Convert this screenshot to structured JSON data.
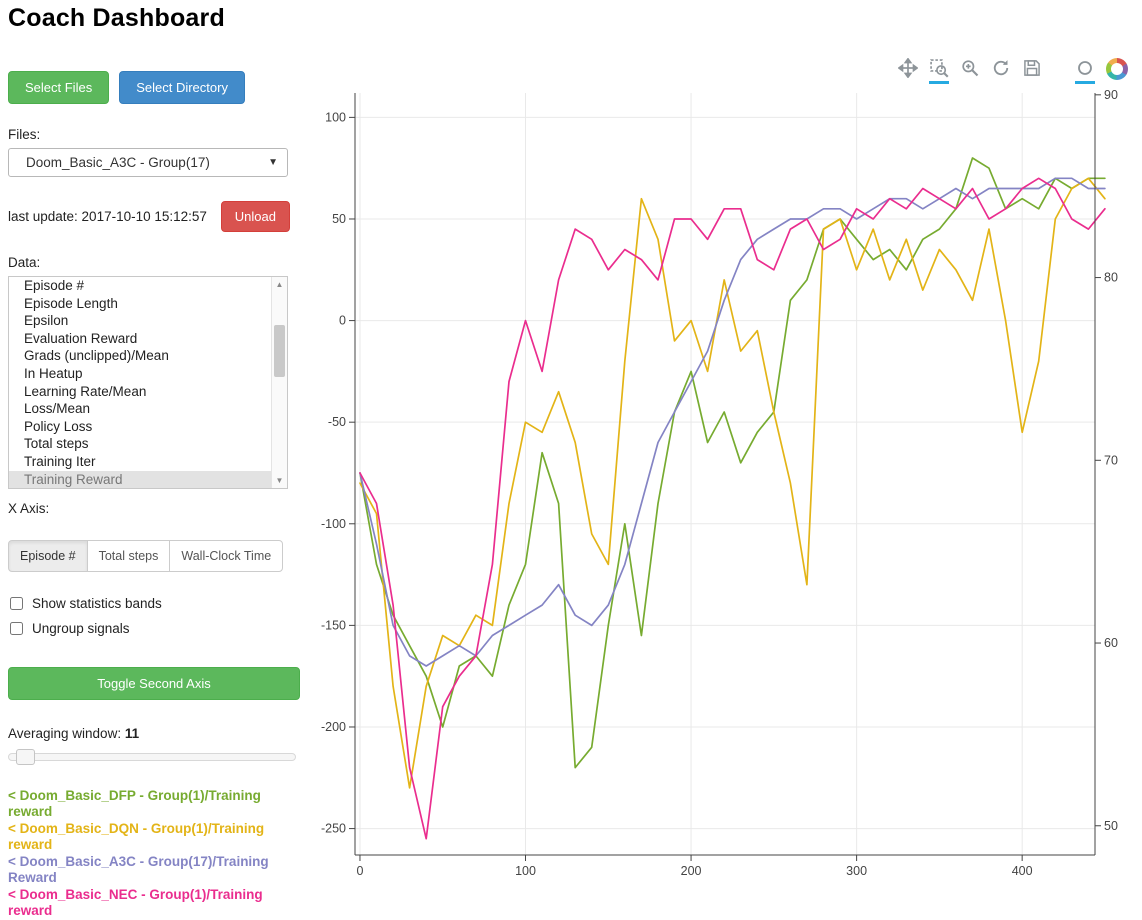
{
  "title": "Coach Dashboard",
  "buttons": {
    "select_files": "Select Files",
    "select_directory": "Select Directory",
    "unload": "Unload",
    "toggle_second_axis": "Toggle Second Axis"
  },
  "files": {
    "label": "Files:",
    "selected": "Doom_Basic_A3C - Group(17)"
  },
  "last_update": "last update: 2017-10-10 15:12:57",
  "data_list": {
    "label": "Data:",
    "items": [
      "Episode #",
      "Episode Length",
      "Epsilon",
      "Evaluation Reward",
      "Grads (unclipped)/Mean",
      "In Heatup",
      "Learning Rate/Mean",
      "Loss/Mean",
      "Policy Loss",
      "Total steps",
      "Training Iter",
      "Training Reward"
    ],
    "selected": "Training Reward"
  },
  "x_axis": {
    "label": "X Axis:",
    "options": [
      "Episode #",
      "Total steps",
      "Wall-Clock Time"
    ],
    "selected": "Episode #"
  },
  "checkboxes": [
    {
      "label": "Show statistics bands",
      "checked": false
    },
    {
      "label": "Ungroup signals",
      "checked": false
    }
  ],
  "averaging": {
    "label": "Averaging window:",
    "value": "11"
  },
  "legend": [
    {
      "text": "< Doom_Basic_DFP - Group(1)/Training reward",
      "color": "#77ab30"
    },
    {
      "text": "< Doom_Basic_DQN - Group(1)/Training reward",
      "color": "#e3b417"
    },
    {
      "text": "< Doom_Basic_A3C - Group(17)/Training Reward",
      "color": "#8484c4"
    },
    {
      "text": "< Doom_Basic_NEC - Group(1)/Training reward",
      "color": "#ea2d8e"
    }
  ],
  "toolbar": {
    "icons": [
      {
        "name": "pan-icon",
        "active": false,
        "gap": false
      },
      {
        "name": "box-zoom-icon",
        "active": true,
        "gap": false
      },
      {
        "name": "wheel-zoom-icon",
        "active": false,
        "gap": false
      },
      {
        "name": "reset-icon",
        "active": false,
        "gap": false
      },
      {
        "name": "save-icon",
        "active": false,
        "gap": false
      },
      {
        "name": "hover-icon",
        "active": true,
        "gap": true
      }
    ],
    "accent_color": "#26aae1"
  },
  "chart_data": {
    "type": "line",
    "x": [
      0,
      10,
      20,
      30,
      40,
      50,
      60,
      70,
      80,
      90,
      100,
      110,
      120,
      130,
      140,
      150,
      160,
      170,
      180,
      190,
      200,
      210,
      220,
      230,
      240,
      250,
      260,
      270,
      280,
      290,
      300,
      310,
      320,
      330,
      340,
      350,
      360,
      370,
      380,
      390,
      400,
      410,
      420,
      430,
      440,
      450
    ],
    "series": [
      {
        "name": "Doom_Basic_DFP - Group(1)/Training reward",
        "color": "#77ab30",
        "values": [
          -75,
          -120,
          -145,
          -160,
          -175,
          -200,
          -170,
          -165,
          -175,
          -140,
          -120,
          -65,
          -90,
          -220,
          -210,
          -150,
          -100,
          -155,
          -90,
          -45,
          -25,
          -60,
          -45,
          -70,
          -55,
          -45,
          10,
          20,
          45,
          50,
          40,
          30,
          35,
          25,
          40,
          45,
          55,
          80,
          75,
          55,
          60,
          55,
          70,
          65,
          70,
          70
        ]
      },
      {
        "name": "Doom_Basic_DQN - Group(1)/Training reward",
        "color": "#e3b417",
        "values": [
          -80,
          -95,
          -180,
          -230,
          -180,
          -155,
          -160,
          -145,
          -150,
          -90,
          -50,
          -55,
          -35,
          -60,
          -105,
          -120,
          -20,
          60,
          40,
          -10,
          0,
          -25,
          20,
          -15,
          -5,
          -45,
          -80,
          -130,
          45,
          50,
          25,
          45,
          20,
          40,
          15,
          35,
          25,
          10,
          45,
          0,
          -55,
          -20,
          50,
          65,
          70,
          60
        ]
      },
      {
        "name": "Doom_Basic_A3C - Group(17)/Training Reward",
        "color": "#8484c4",
        "values": [
          -75,
          -110,
          -150,
          -165,
          -170,
          -165,
          -160,
          -165,
          -155,
          -150,
          -145,
          -140,
          -130,
          -145,
          -150,
          -140,
          -120,
          -90,
          -60,
          -45,
          -30,
          -15,
          10,
          30,
          40,
          45,
          50,
          50,
          55,
          55,
          50,
          55,
          60,
          60,
          55,
          60,
          65,
          60,
          65,
          65,
          65,
          65,
          70,
          70,
          65,
          65
        ]
      },
      {
        "name": "Doom_Basic_NEC - Group(1)/Training reward",
        "color": "#ea2d8e",
        "values": [
          -75,
          -90,
          -140,
          -220,
          -255,
          -190,
          -175,
          -165,
          -120,
          -30,
          0,
          -25,
          20,
          45,
          40,
          25,
          35,
          30,
          20,
          50,
          50,
          40,
          55,
          55,
          30,
          25,
          45,
          50,
          35,
          40,
          55,
          50,
          60,
          55,
          65,
          60,
          55,
          65,
          50,
          55,
          65,
          70,
          65,
          50,
          45,
          55
        ]
      }
    ],
    "title": "",
    "xlabel": "",
    "ylabel": "",
    "xlim": [
      -3,
      444
    ],
    "ylim_left": [
      -263,
      112
    ],
    "ylim_right": [
      48.4,
      90.1
    ],
    "x_ticks": [
      0,
      100,
      200,
      300,
      400
    ],
    "y_ticks_left": [
      100,
      50,
      0,
      -50,
      -100,
      -150,
      -200,
      -250
    ],
    "y_ticks_right": [
      90,
      80,
      70,
      60,
      50
    ],
    "grid": true,
    "legend_position": "left-panel"
  }
}
